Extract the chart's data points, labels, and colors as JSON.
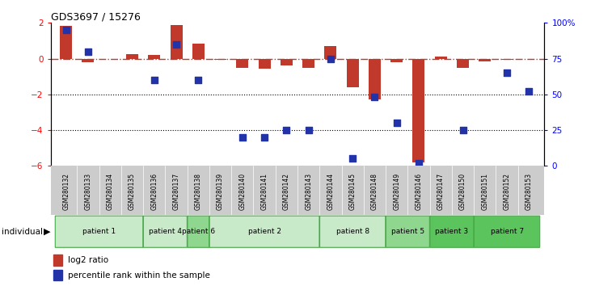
{
  "title": "GDS3697 / 15276",
  "samples": [
    "GSM280132",
    "GSM280133",
    "GSM280134",
    "GSM280135",
    "GSM280136",
    "GSM280137",
    "GSM280138",
    "GSM280139",
    "GSM280140",
    "GSM280141",
    "GSM280142",
    "GSM280143",
    "GSM280144",
    "GSM280145",
    "GSM280148",
    "GSM280149",
    "GSM280146",
    "GSM280147",
    "GSM280150",
    "GSM280151",
    "GSM280152",
    "GSM280153"
  ],
  "log2_ratio": [
    1.85,
    -0.2,
    0.0,
    0.25,
    0.2,
    1.9,
    0.85,
    -0.05,
    -0.5,
    -0.55,
    -0.4,
    -0.5,
    0.7,
    -1.6,
    -2.3,
    -0.2,
    -5.8,
    0.1,
    -0.5,
    -0.15,
    -0.05,
    0.0
  ],
  "percentile_rank": [
    95,
    80,
    null,
    null,
    60,
    85,
    60,
    null,
    20,
    20,
    25,
    25,
    75,
    5,
    48,
    30,
    2,
    null,
    25,
    null,
    65,
    52
  ],
  "patients": [
    {
      "label": "patient 1",
      "start": 0,
      "end": 4,
      "color": "#c8eac9"
    },
    {
      "label": "patient 4",
      "start": 4,
      "end": 6,
      "color": "#c8eac9"
    },
    {
      "label": "patient 6",
      "start": 6,
      "end": 7,
      "color": "#8fd68f"
    },
    {
      "label": "patient 2",
      "start": 7,
      "end": 12,
      "color": "#c8eac9"
    },
    {
      "label": "patient 8",
      "start": 12,
      "end": 15,
      "color": "#c8eac9"
    },
    {
      "label": "patient 5",
      "start": 15,
      "end": 17,
      "color": "#8fd68f"
    },
    {
      "label": "patient 3",
      "start": 17,
      "end": 19,
      "color": "#5cc45c"
    },
    {
      "label": "patient 7",
      "start": 19,
      "end": 22,
      "color": "#5cc45c"
    }
  ],
  "ylim": [
    -6,
    2
  ],
  "yticks_left": [
    -6,
    -4,
    -2,
    0,
    2
  ],
  "yticks_right": [
    0,
    25,
    50,
    75,
    100
  ],
  "yticks_right_labels": [
    "0",
    "25",
    "50",
    "75",
    "100%"
  ],
  "bar_color": "#c0392b",
  "dot_color": "#2233aa",
  "ref_line_color": "#c0392b",
  "dotted_line_color": "black",
  "bg_color": "white",
  "sample_bg_color": "#cccccc",
  "bar_width": 0.55,
  "dot_size": 28
}
